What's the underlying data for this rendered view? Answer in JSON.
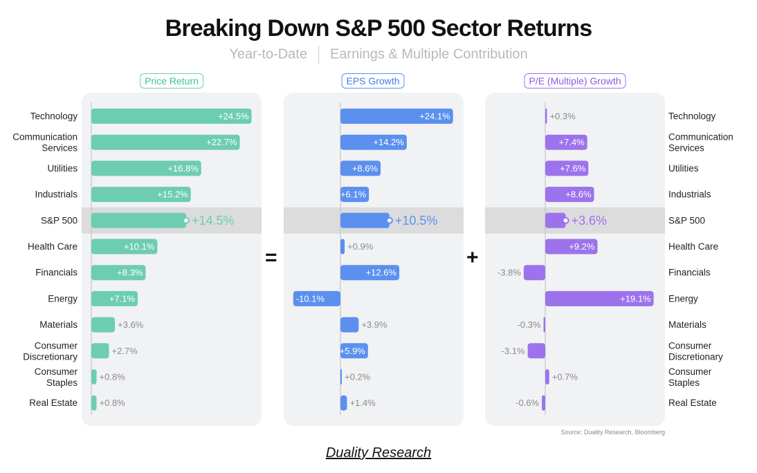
{
  "header": {
    "title": "Breaking Down S&P 500 Sector Returns",
    "subtitle_left": "Year-to-Date",
    "subtitle_right": "Earnings & Multiple Contribution"
  },
  "operators": {
    "equals": "=",
    "plus": "+"
  },
  "source": "Source: Duality Research, Bloomberg",
  "footer": "Duality Research",
  "colors": {
    "price": "#6dcdb1",
    "eps": "#5b90ef",
    "pe": "#9c73ec",
    "panel": "#f1f2f4",
    "highlight": "#dcdcdd",
    "outside_label": "#8a8a8a"
  },
  "chart_data": {
    "type": "bar",
    "orientation": "horizontal",
    "highlighted_category": "S&P 500",
    "categories": [
      "Technology",
      "Communication Services",
      "Utilities",
      "Industrials",
      "S&P 500",
      "Health Care",
      "Financials",
      "Energy",
      "Materials",
      "Consumer Discretionary",
      "Consumer Staples",
      "Real Estate"
    ],
    "series": [
      {
        "name": "Price Return",
        "values": [
          24.5,
          22.7,
          16.8,
          15.2,
          14.5,
          10.1,
          8.3,
          7.1,
          3.6,
          2.7,
          0.8,
          0.8
        ],
        "labels": [
          "+24.5%",
          "+22.7%",
          "+16.8%",
          "+15.2%",
          "+14.5%",
          "+10.1%",
          "+8.3%",
          "+7.1%",
          "+3.6%",
          "+2.7%",
          "+0.8%",
          "+0.8%"
        ]
      },
      {
        "name": "EPS Growth",
        "values": [
          24.1,
          14.2,
          8.6,
          6.1,
          10.5,
          0.9,
          12.6,
          -10.1,
          3.9,
          5.9,
          0.2,
          1.4
        ],
        "labels": [
          "+24.1%",
          "+14.2%",
          "+8.6%",
          "+6.1%",
          "+10.5%",
          "+0.9%",
          "+12.6%",
          "-10.1%",
          "+3.9%",
          "+5.9%",
          "+0.2%",
          "+1.4%"
        ]
      },
      {
        "name": "P/E (Multiple) Growth",
        "values": [
          0.3,
          7.4,
          7.6,
          8.6,
          3.6,
          9.2,
          -3.8,
          19.1,
          -0.3,
          -3.1,
          0.7,
          -0.6
        ],
        "labels": [
          "+0.3%",
          "+7.4%",
          "+7.6%",
          "+8.6%",
          "+3.6%",
          "+9.2%",
          "-3.8%",
          "+19.1%",
          "-0.3%",
          "-3.1%",
          "+0.7%",
          "-0.6%"
        ]
      }
    ],
    "xlabel": "",
    "ylabel": "",
    "grid": false
  }
}
